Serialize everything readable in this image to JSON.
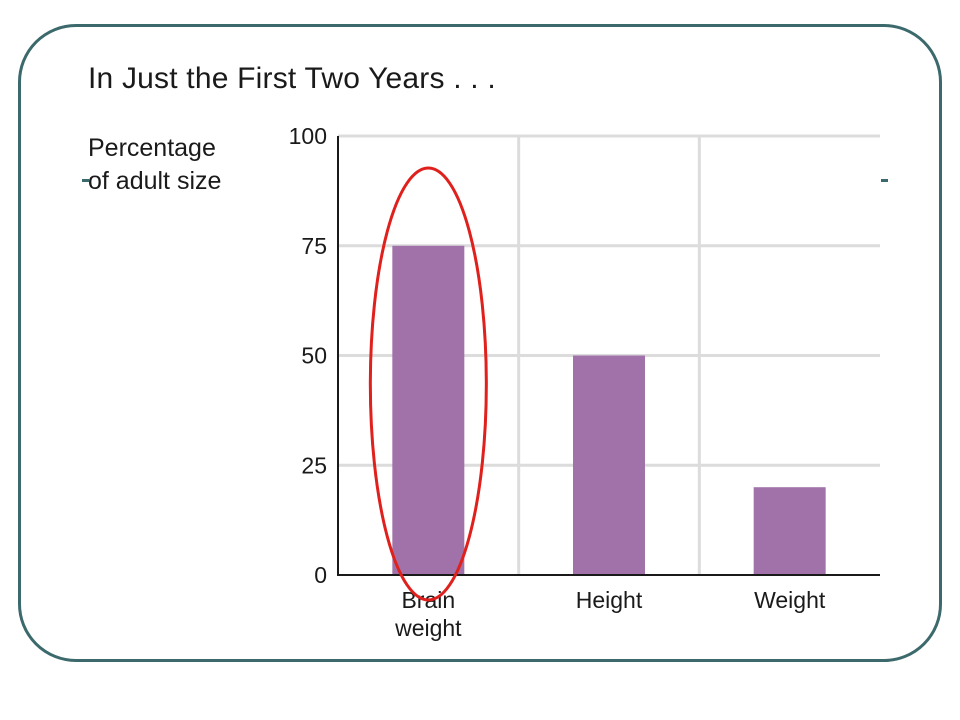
{
  "slide": {
    "title": "In Just the First Two Years . . .",
    "accent_color": "#3c6a6c"
  },
  "chart_data": {
    "type": "bar",
    "title": "",
    "ylabel_lines": [
      "Percentage",
      "of adult size"
    ],
    "xlabel": "",
    "categories": [
      [
        "Brain",
        "weight"
      ],
      [
        "Height"
      ],
      [
        "Weight"
      ]
    ],
    "values": [
      75,
      50,
      20
    ],
    "ylim": [
      0,
      100
    ],
    "yticks": [
      0,
      25,
      50,
      75,
      100
    ],
    "grid": true,
    "bar_color": "#a172aa",
    "highlight": {
      "category_index": 0,
      "shape": "ellipse",
      "color": "#e0201c"
    }
  }
}
